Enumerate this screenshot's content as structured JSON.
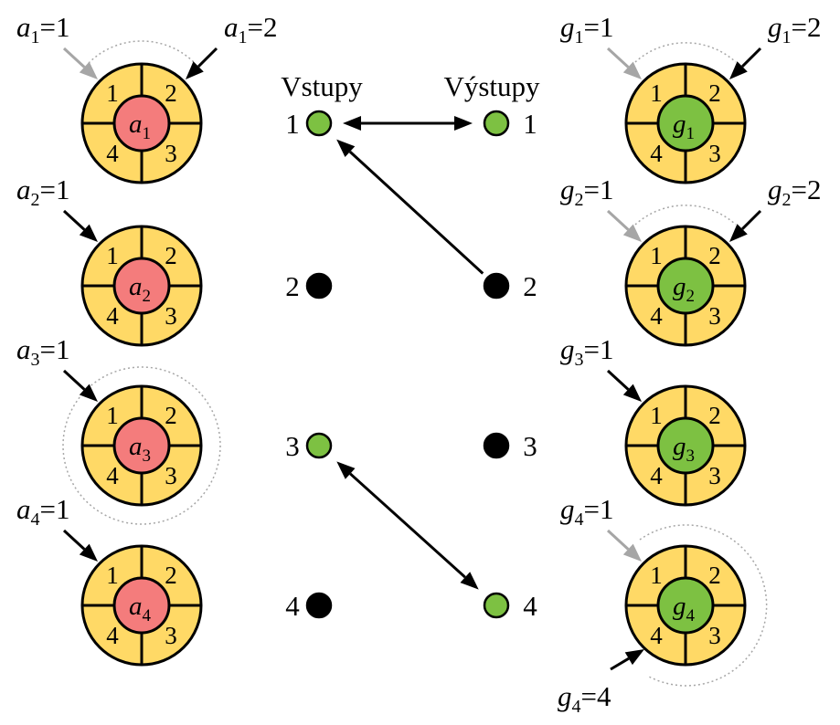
{
  "colors": {
    "ring": "#FFD966",
    "input_center": "#F47C7C",
    "output_center": "#7DC142",
    "active_node": "#7DC142",
    "inactive_node": "#000000",
    "primary_arrow": "#000000",
    "secondary_arrow": "#A6A6A6",
    "orbit": "#A6A6A6"
  },
  "headers": {
    "inputs": "Vstupy",
    "outputs": "Výstupy"
  },
  "sector_labels": [
    "1",
    "2",
    "3",
    "4"
  ],
  "input_wheels": [
    {
      "letter": "a",
      "sub": "1",
      "labels": [
        {
          "letter": "a",
          "sub": "1",
          "value": "=1",
          "arrow": "gray"
        },
        {
          "letter": "a",
          "sub": "1",
          "value": "=2",
          "arrow": "black"
        }
      ]
    },
    {
      "letter": "a",
      "sub": "2",
      "labels": [
        {
          "letter": "a",
          "sub": "2",
          "value": "=1",
          "arrow": "black"
        }
      ]
    },
    {
      "letter": "a",
      "sub": "3",
      "labels": [
        {
          "letter": "a",
          "sub": "3",
          "value": "=1",
          "arrow": "black"
        }
      ]
    },
    {
      "letter": "a",
      "sub": "4",
      "labels": [
        {
          "letter": "a",
          "sub": "4",
          "value": "=1",
          "arrow": "black"
        }
      ]
    }
  ],
  "output_wheels": [
    {
      "letter": "g",
      "sub": "1",
      "labels": [
        {
          "letter": "g",
          "sub": "1",
          "value": "=1",
          "arrow": "gray"
        },
        {
          "letter": "g",
          "sub": "1",
          "value": "=2",
          "arrow": "black"
        }
      ]
    },
    {
      "letter": "g",
      "sub": "2",
      "labels": [
        {
          "letter": "g",
          "sub": "2",
          "value": "=1",
          "arrow": "gray"
        },
        {
          "letter": "g",
          "sub": "2",
          "value": "=2",
          "arrow": "black"
        }
      ]
    },
    {
      "letter": "g",
      "sub": "3",
      "labels": [
        {
          "letter": "g",
          "sub": "3",
          "value": "=1",
          "arrow": "black"
        }
      ]
    },
    {
      "letter": "g",
      "sub": "4",
      "labels": [
        {
          "letter": "g",
          "sub": "4",
          "value": "=1",
          "arrow": "gray"
        },
        {
          "letter": "g",
          "sub": "4",
          "value": "=4",
          "arrow": "black"
        }
      ]
    }
  ],
  "input_nodes": [
    {
      "label": "1",
      "active": true
    },
    {
      "label": "2",
      "active": false
    },
    {
      "label": "3",
      "active": true
    },
    {
      "label": "4",
      "active": false
    }
  ],
  "output_nodes": [
    {
      "label": "1",
      "active": true
    },
    {
      "label": "2",
      "active": false
    },
    {
      "label": "3",
      "active": false
    },
    {
      "label": "4",
      "active": true
    }
  ],
  "connections": [
    {
      "from": "input-1",
      "to": "output-1",
      "bidirectional": true
    },
    {
      "from": "output-2",
      "to": "input-1",
      "bidirectional": false
    },
    {
      "from": "input-3",
      "to": "output-4",
      "bidirectional": true
    }
  ]
}
